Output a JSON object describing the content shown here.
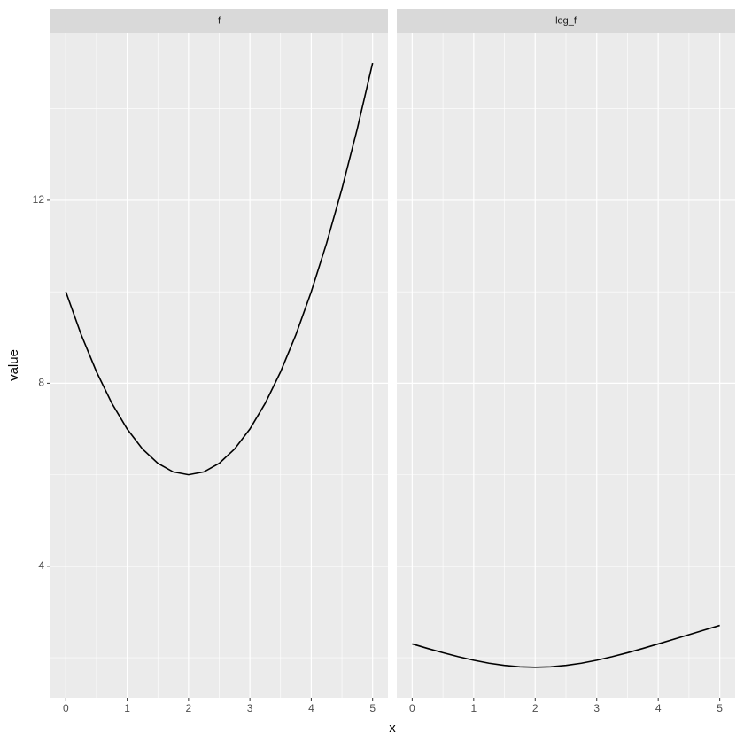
{
  "chart_data": {
    "type": "line",
    "facet": true,
    "x_label": "x",
    "y_label": "value",
    "x": [
      0,
      0.25,
      0.5,
      0.75,
      1,
      1.25,
      1.5,
      1.75,
      2,
      2.25,
      2.5,
      2.75,
      3,
      3.25,
      3.5,
      3.75,
      4,
      4.25,
      4.5,
      4.75,
      5
    ],
    "series": [
      {
        "name": "f",
        "color": "#000000",
        "values": [
          10,
          9.0625,
          8.25,
          7.5625,
          7,
          6.5625,
          6.25,
          6.0625,
          6,
          6.0625,
          6.25,
          6.5625,
          7,
          7.5625,
          8.25,
          9.0625,
          10,
          11.0625,
          12.25,
          13.5625,
          15
        ]
      },
      {
        "name": "log_f",
        "color": "#000000",
        "values": [
          2.303,
          2.204,
          2.11,
          2.023,
          1.946,
          1.881,
          1.833,
          1.802,
          1.792,
          1.802,
          1.833,
          1.881,
          1.946,
          2.023,
          2.11,
          2.204,
          2.303,
          2.404,
          2.506,
          2.607,
          2.708
        ]
      }
    ],
    "xlim": [
      -0.25,
      5.25
    ],
    "xticks": [
      0,
      1,
      2,
      3,
      4,
      5
    ],
    "ylim": [
      1.13,
      15.66
    ],
    "yticks": [
      4,
      8,
      12
    ],
    "grid": true
  }
}
